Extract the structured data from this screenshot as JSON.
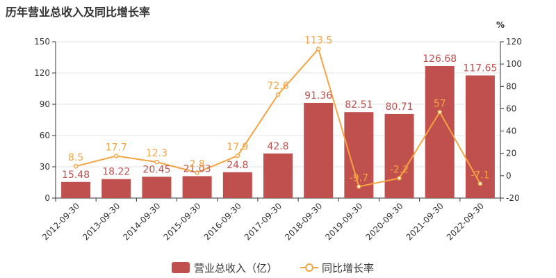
{
  "chart_data": {
    "type": "bar+line",
    "title": "历年营业总收入及同比增长率",
    "categories": [
      "2012-09-30",
      "2013-09-30",
      "2014-09-30",
      "2015-09-30",
      "2016-09-30",
      "2017-09-30",
      "2018-09-30",
      "2019-09-30",
      "2020-09-30",
      "2021-09-30",
      "2022-09-30"
    ],
    "series": [
      {
        "name": "营业总收入（亿）",
        "type": "bar",
        "axis": "left",
        "color": "#c0504d",
        "values": [
          15.48,
          18.22,
          20.45,
          21.03,
          24.8,
          42.8,
          91.36,
          82.51,
          80.71,
          126.68,
          117.65
        ]
      },
      {
        "name": "同比增长率",
        "type": "line",
        "axis": "right",
        "color": "#f5a442",
        "values": [
          8.5,
          17.7,
          12.3,
          2.8,
          17.9,
          72.6,
          113.5,
          -9.7,
          -2.2,
          57,
          -7.1
        ]
      }
    ],
    "y_left": {
      "min": 0,
      "max": 150,
      "ticks": [
        0,
        30,
        60,
        90,
        120,
        150
      ]
    },
    "y_right": {
      "unit": "%",
      "min": -20,
      "max": 120,
      "ticks": [
        -20,
        0,
        20,
        40,
        60,
        80,
        100,
        120
      ]
    },
    "legend": {
      "position": "bottom-center"
    },
    "grid": true
  }
}
